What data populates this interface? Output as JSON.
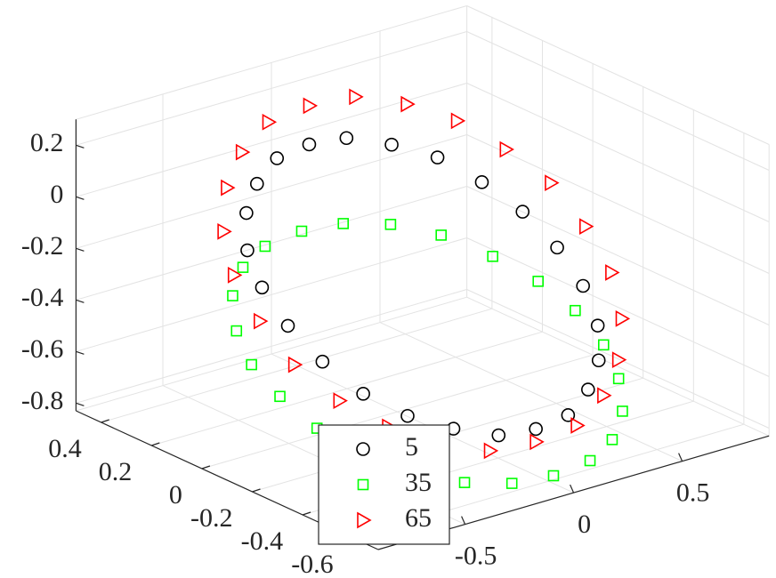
{
  "chart_data": {
    "type": "scatter3d",
    "xlim": [
      -0.9,
      0.9
    ],
    "ylim": [
      -0.7,
      0.5
    ],
    "zlim": [
      -0.83,
      0.3
    ],
    "xticks": [
      -0.5,
      0,
      0.5
    ],
    "yticks": [
      -0.6,
      -0.4,
      -0.2,
      0,
      0.2,
      0.4
    ],
    "zticks": [
      -0.8,
      -0.6,
      -0.4,
      -0.2,
      0,
      0.2
    ],
    "grid": true,
    "legend": "bottom",
    "series": [
      {
        "name": "5",
        "color": "#000000",
        "marker": "circle",
        "x": [
          0.62,
          0.6,
          0.54,
          0.44,
          0.31,
          0.16,
          0,
          -0.16,
          -0.31,
          -0.44,
          -0.54,
          -0.6,
          -0.62,
          -0.6,
          -0.54,
          -0.44,
          -0.31,
          -0.16,
          0,
          0.16,
          0.31,
          0.44,
          0.54,
          0.6
        ],
        "y": [
          -0.1,
          0.02,
          0.13,
          0.22,
          0.29,
          0.34,
          0.35,
          0.34,
          0.29,
          0.22,
          0.13,
          0.02,
          -0.1,
          -0.22,
          -0.33,
          -0.42,
          -0.49,
          -0.54,
          -0.55,
          -0.54,
          -0.49,
          -0.42,
          -0.33,
          -0.22
        ],
        "z": [
          -0.3,
          -0.21,
          -0.13,
          -0.05,
          0.0,
          0.04,
          0.05,
          0.04,
          0.0,
          -0.05,
          -0.13,
          -0.21,
          -0.3,
          -0.39,
          -0.48,
          -0.55,
          -0.6,
          -0.64,
          -0.65,
          -0.64,
          -0.6,
          -0.55,
          -0.48,
          -0.39
        ]
      },
      {
        "name": "35",
        "color": "#00ff00",
        "marker": "square",
        "x": [
          0.68,
          0.66,
          0.59,
          0.48,
          0.34,
          0.18,
          0,
          -0.18,
          -0.34,
          -0.48,
          -0.59,
          -0.66,
          -0.68,
          -0.66,
          -0.59,
          -0.48,
          -0.34,
          -0.18,
          0,
          0.18,
          0.34,
          0.48,
          0.59,
          0.66
        ],
        "y": [
          -0.12,
          0.01,
          0.13,
          0.24,
          0.32,
          0.37,
          0.38,
          0.37,
          0.32,
          0.24,
          0.13,
          0.01,
          -0.12,
          -0.25,
          -0.37,
          -0.48,
          -0.56,
          -0.61,
          -0.62,
          -0.61,
          -0.56,
          -0.48,
          -0.37,
          -0.25
        ],
        "z": [
          -0.55,
          -0.49,
          -0.43,
          -0.37,
          -0.33,
          -0.31,
          -0.3,
          -0.31,
          -0.33,
          -0.37,
          -0.43,
          -0.49,
          -0.55,
          -0.62,
          -0.68,
          -0.73,
          -0.77,
          -0.79,
          -0.8,
          -0.79,
          -0.77,
          -0.73,
          -0.68,
          -0.62
        ]
      },
      {
        "name": "65",
        "color": "#ff0000",
        "marker": "triangle-right",
        "x": [
          0.75,
          0.73,
          0.65,
          0.53,
          0.38,
          0.2,
          0,
          -0.2,
          -0.38,
          -0.53,
          -0.65,
          -0.73,
          -0.75,
          -0.73,
          -0.65,
          -0.53,
          -0.38,
          -0.2,
          0,
          0.2,
          0.38,
          0.53,
          0.65,
          0.73
        ],
        "y": [
          -0.1,
          0.02,
          0.13,
          0.22,
          0.29,
          0.34,
          0.35,
          0.34,
          0.29,
          0.22,
          0.13,
          0.02,
          -0.1,
          -0.22,
          -0.33,
          -0.42,
          -0.49,
          -0.54,
          -0.55,
          -0.54,
          -0.49,
          -0.42,
          -0.33,
          -0.22
        ],
        "z": [
          -0.25,
          -0.13,
          -0.03,
          0.07,
          0.14,
          0.19,
          0.2,
          0.19,
          0.14,
          0.07,
          -0.03,
          -0.13,
          -0.25,
          -0.37,
          -0.48,
          -0.57,
          -0.64,
          -0.69,
          -0.7,
          -0.69,
          -0.64,
          -0.57,
          -0.48,
          -0.37
        ]
      }
    ]
  }
}
